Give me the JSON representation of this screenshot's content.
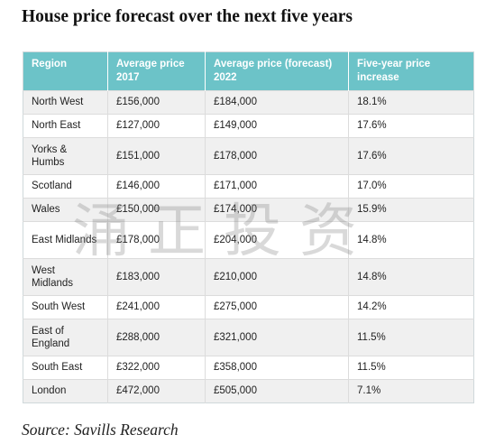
{
  "title": "House price forecast over the next five years",
  "table": {
    "headers": [
      "Region",
      "Average price 2017",
      "Average price (forecast) 2022",
      "Five-year price increase"
    ],
    "rows": [
      [
        "North West",
        "£156,000",
        "£184,000",
        "18.1%"
      ],
      [
        "North East",
        "£127,000",
        "£149,000",
        "17.6%"
      ],
      [
        "Yorks & Humbs",
        "£151,000",
        "£178,000",
        "17.6%"
      ],
      [
        "Scotland",
        "£146,000",
        "£171,000",
        "17.0%"
      ],
      [
        "Wales",
        "£150,000",
        "£174,000",
        "15.9%"
      ],
      [
        "East Midlands",
        "£178,000",
        "£204,000",
        "14.8%"
      ],
      [
        "West Midlands",
        "£183,000",
        "£210,000",
        "14.8%"
      ],
      [
        "South West",
        "£241,000",
        "£275,000",
        "14.2%"
      ],
      [
        "East of England",
        "£288,000",
        "£321,000",
        "11.5%"
      ],
      [
        "South East",
        "£322,000",
        "£358,000",
        "11.5%"
      ],
      [
        "London",
        "£472,000",
        "£505,000",
        "7.1%"
      ]
    ]
  },
  "watermark": "涌正投资",
  "source": "Source: Savills Research",
  "colors": {
    "header_bg": "#6cc3c8",
    "header_text": "#ffffff",
    "stripe": "#f0f0f0"
  }
}
